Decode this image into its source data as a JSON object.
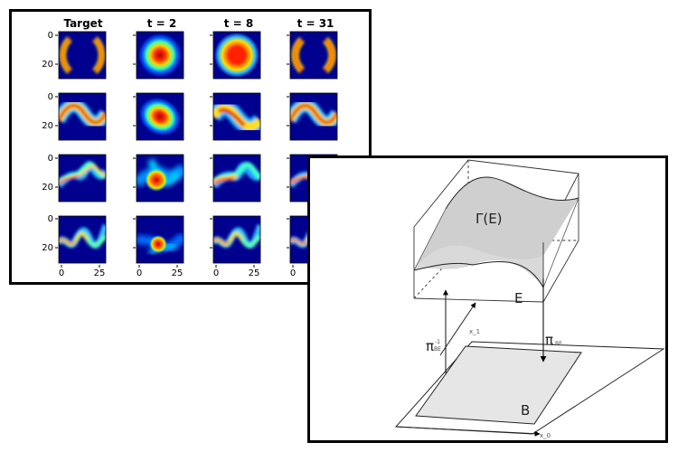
{
  "grid_figure": {
    "column_titles": [
      "Target",
      "t = 2",
      "t = 8",
      "t = 31"
    ],
    "y_tick_labels": [
      "0",
      "20"
    ],
    "x_tick_labels": [
      "0",
      "25"
    ],
    "colormap": [
      "#00007f",
      "#0000ff",
      "#00ffff",
      "#ffff00",
      "#ff0000",
      "#7f0000"
    ]
  },
  "bundle_figure": {
    "section_label": "Γ(E)",
    "total_space_label": "E",
    "base_space_label": "B",
    "projection_label": "π",
    "projection_subscript": "BE",
    "inverse_superscript": "-1",
    "axis_x0_label": "x_0",
    "axis_x1_label": "x_1"
  }
}
